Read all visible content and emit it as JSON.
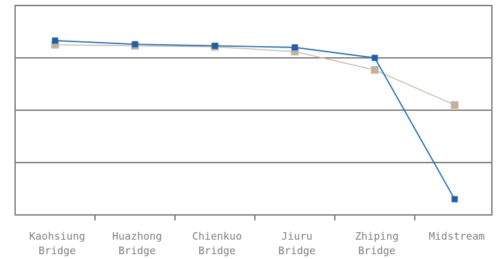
{
  "chart_data": {
    "type": "line",
    "title": "",
    "xlabel": "",
    "ylabel": "",
    "categories": [
      [
        "Kaohsiung",
        "Bridge"
      ],
      [
        "Huazhong",
        "Bridge"
      ],
      [
        "Chienkuo",
        "Bridge"
      ],
      [
        "Jiuru",
        "Bridge"
      ],
      [
        "Zhiping",
        "Bridge"
      ],
      [
        "Midstream"
      ]
    ],
    "ylim": [
      0,
      4
    ],
    "y_gridlines": [
      1,
      2,
      3
    ],
    "grid": true,
    "legend": "none",
    "series": [
      {
        "color": "#1f6fbf",
        "marker_color": "#1f5fa8",
        "values": [
          3.33,
          3.26,
          3.23,
          3.2,
          3.0,
          0.3
        ]
      },
      {
        "color": "#c9bba4",
        "marker_color": "#c2b29c",
        "values": [
          3.25,
          3.23,
          3.21,
          3.12,
          2.77,
          2.1
        ]
      }
    ]
  }
}
